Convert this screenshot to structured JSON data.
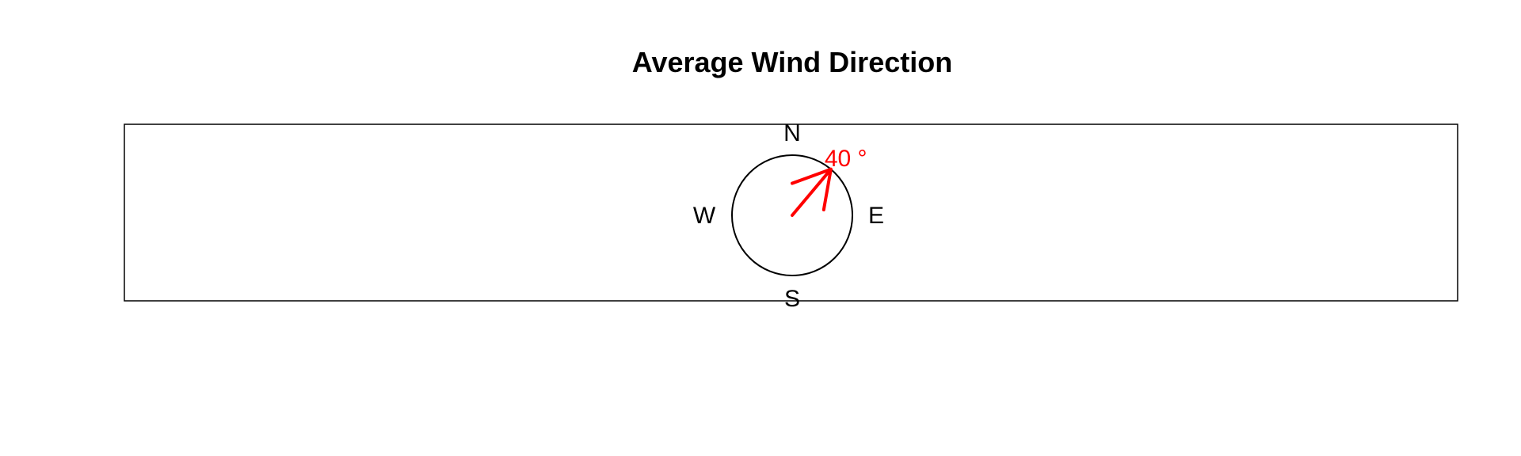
{
  "chart_data": {
    "type": "compass",
    "title": "Average Wind Direction",
    "directions": [
      "N",
      "E",
      "S",
      "W"
    ],
    "series": [
      {
        "direction_degrees": 40,
        "label": "40 °"
      }
    ],
    "colors": {
      "arrow": "#ff0000",
      "frame": "#000000",
      "background": "#ffffff"
    }
  }
}
